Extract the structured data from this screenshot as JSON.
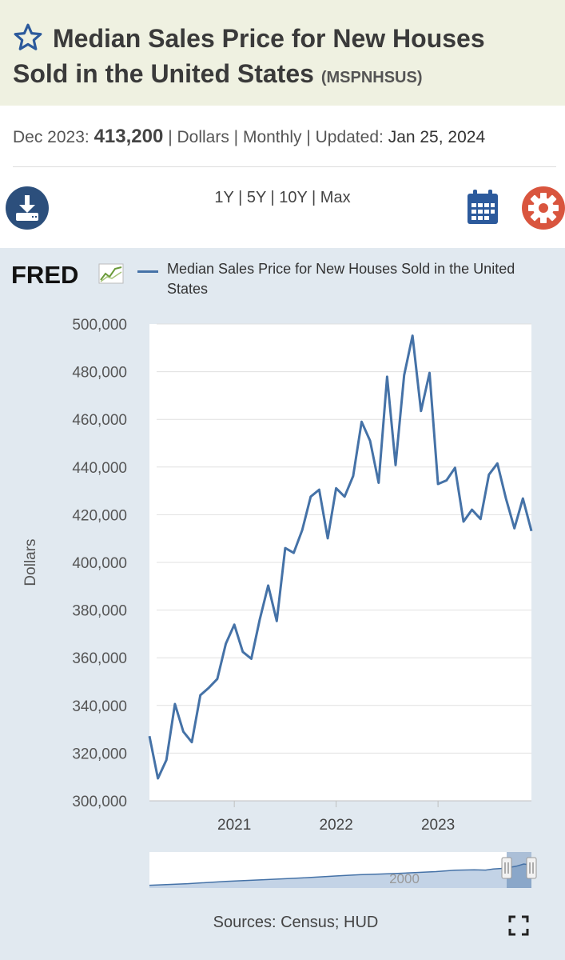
{
  "header": {
    "title": "Median Sales Price for New Houses Sold in the United States",
    "series_id": "(MSPNHSUS)"
  },
  "meta": {
    "date_label": "Dec 2023:",
    "value": "413,200",
    "rest": "| Dollars | Monthly | Updated:",
    "updated": "Jan 25, 2024"
  },
  "toolbar": {
    "ranges": [
      "1Y",
      "5Y",
      "10Y",
      "Max"
    ],
    "download_icon": "download-icon",
    "calendar_icon": "calendar-icon",
    "settings_icon": "gear-icon"
  },
  "brand": {
    "logo": "FRED"
  },
  "footer": {
    "sources": "Sources: Census; HUD"
  },
  "colors": {
    "series": "#4572a7",
    "header_bg": "#eff1e1",
    "chart_bg": "#e1e9f0",
    "gear": "#d9553e",
    "icon_blue": "#2c5282"
  },
  "chart_data": {
    "type": "line",
    "title": "Median Sales Price for New Houses Sold in the United States",
    "ylabel": "Dollars",
    "xlabel": "",
    "ylim": [
      300000,
      500000
    ],
    "yticks": [
      "300,000",
      "320,000",
      "340,000",
      "360,000",
      "380,000",
      "400,000",
      "420,000",
      "440,000",
      "460,000",
      "480,000",
      "500,000"
    ],
    "yticks_values": [
      300000,
      320000,
      340000,
      360000,
      380000,
      400000,
      420000,
      440000,
      460000,
      480000,
      500000
    ],
    "xlim": [
      2020.167,
      2023.917
    ],
    "xticks": [
      "2021",
      "2022",
      "2023"
    ],
    "xticks_values": [
      2021,
      2022,
      2023
    ],
    "grid": true,
    "series": [
      {
        "name": "Median Sales Price for New Houses Sold in the United States",
        "x": [
          2020.167,
          2020.25,
          2020.333,
          2020.417,
          2020.5,
          2020.583,
          2020.667,
          2020.75,
          2020.833,
          2020.917,
          2021.0,
          2021.083,
          2021.167,
          2021.25,
          2021.333,
          2021.417,
          2021.5,
          2021.583,
          2021.667,
          2021.75,
          2021.833,
          2021.917,
          2022.0,
          2022.083,
          2022.167,
          2022.25,
          2022.333,
          2022.417,
          2022.5,
          2022.583,
          2022.667,
          2022.75,
          2022.833,
          2022.917,
          2023.0,
          2023.083,
          2023.167,
          2023.25,
          2023.333,
          2023.417,
          2023.5,
          2023.583,
          2023.667,
          2023.75,
          2023.833,
          2023.917
        ],
        "values": [
          327100,
          309400,
          317100,
          340600,
          329000,
          324600,
          344300,
          347400,
          351100,
          365900,
          373900,
          362500,
          359600,
          376000,
          390300,
          375400,
          406000,
          404000,
          413600,
          427600,
          430500,
          410100,
          431100,
          427600,
          436200,
          459000,
          451000,
          433400,
          477900,
          440800,
          478500,
          495100,
          463500,
          479500,
          432900,
          434400,
          439700,
          417100,
          422100,
          418200,
          436800,
          441500,
          426800,
          414300,
          426800,
          413200
        ]
      }
    ],
    "navigator": {
      "label": "2000",
      "x": [
        0,
        0.1,
        0.2,
        0.3,
        0.4,
        0.5,
        0.55,
        0.6,
        0.65,
        0.7,
        0.75,
        0.8,
        0.85,
        0.88,
        0.9,
        0.92,
        0.94,
        0.96,
        0.98,
        1.0
      ],
      "values": [
        0.05,
        0.12,
        0.22,
        0.3,
        0.38,
        0.48,
        0.52,
        0.55,
        0.58,
        0.62,
        0.66,
        0.72,
        0.74,
        0.73,
        0.78,
        0.8,
        0.84,
        0.9,
        1.0,
        0.95
      ]
    },
    "source": "Sources: Census; HUD"
  }
}
